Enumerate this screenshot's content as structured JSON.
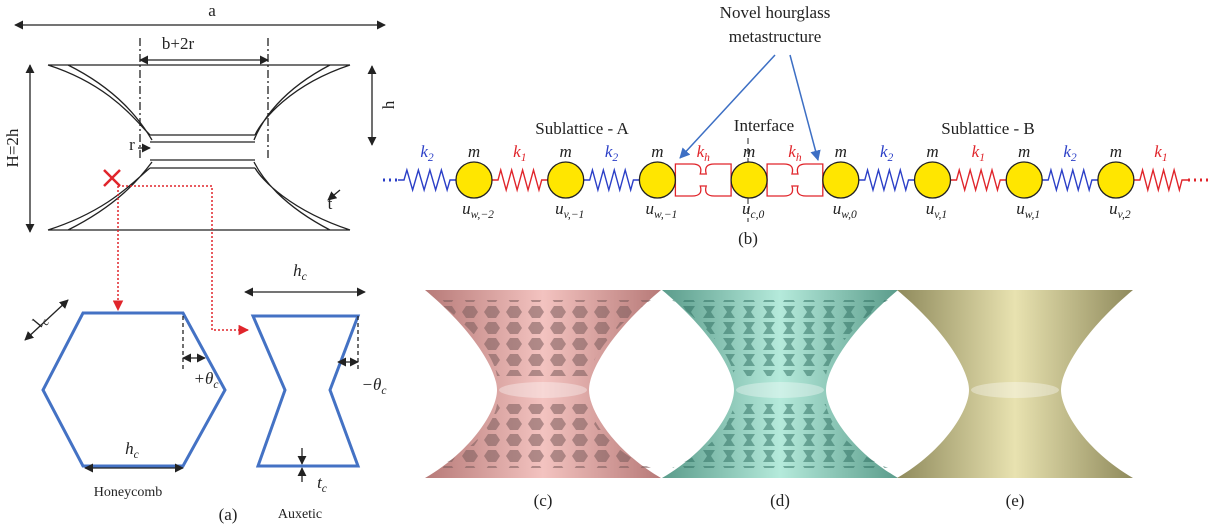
{
  "panel_a": {
    "label": "(a)",
    "dims": {
      "a": "a",
      "b2r": "b+2r",
      "H": "H=2h",
      "h": "h",
      "r": "r",
      "t": "t"
    },
    "honeycomb": {
      "name": "Honeycomb",
      "width": {
        "symbol": "h",
        "sub": "c"
      },
      "length": {
        "symbol": "l",
        "sub": "c"
      },
      "angle": {
        "symbol": "+θ",
        "sub": "c"
      }
    },
    "auxetic": {
      "name": "Auxetic",
      "width": {
        "symbol": "h",
        "sub": "c"
      },
      "angle": {
        "symbol": "−θ",
        "sub": "c"
      },
      "thickness": {
        "symbol": "t",
        "sub": "c"
      }
    }
  },
  "panel_b": {
    "label": "(b)",
    "callout": [
      "Novel hourglass",
      "metastructure"
    ],
    "regions": [
      "Sublattice - A",
      "Interface",
      "Sublattice - B"
    ],
    "springs": [
      {
        "symbol": "k",
        "sub": "2",
        "color": "#2b3fc7"
      },
      {
        "symbol": "k",
        "sub": "1",
        "color": "#e0252b"
      },
      {
        "symbol": "k",
        "sub": "2",
        "color": "#2b3fc7"
      },
      {
        "symbol": "k",
        "sub": "h",
        "color": "#e0252b"
      },
      {
        "symbol": "k",
        "sub": "h",
        "color": "#e0252b"
      },
      {
        "symbol": "k",
        "sub": "2",
        "color": "#2b3fc7"
      },
      {
        "symbol": "k",
        "sub": "1",
        "color": "#e0252b"
      },
      {
        "symbol": "k",
        "sub": "2",
        "color": "#2b3fc7"
      },
      {
        "symbol": "k",
        "sub": "1",
        "color": "#e0252b"
      }
    ],
    "masses": [
      {
        "mass": "m",
        "disp": {
          "symbol": "u",
          "sub": "w,−2"
        }
      },
      {
        "mass": "m",
        "disp": {
          "symbol": "u",
          "sub": "v,−1"
        }
      },
      {
        "mass": "m",
        "disp": {
          "symbol": "u",
          "sub": "w,−1"
        }
      },
      {
        "mass": "m",
        "disp": {
          "symbol": "u",
          "sub": "c,0"
        }
      },
      {
        "mass": "m",
        "disp": {
          "symbol": "u",
          "sub": "w,0"
        }
      },
      {
        "mass": "m",
        "disp": {
          "symbol": "u",
          "sub": "v,1"
        }
      },
      {
        "mass": "m",
        "disp": {
          "symbol": "u",
          "sub": "w,1"
        }
      },
      {
        "mass": "m",
        "disp": {
          "symbol": "u",
          "sub": "v,2"
        }
      }
    ]
  },
  "renders": [
    "(c)",
    "(d)",
    "(e)"
  ]
}
